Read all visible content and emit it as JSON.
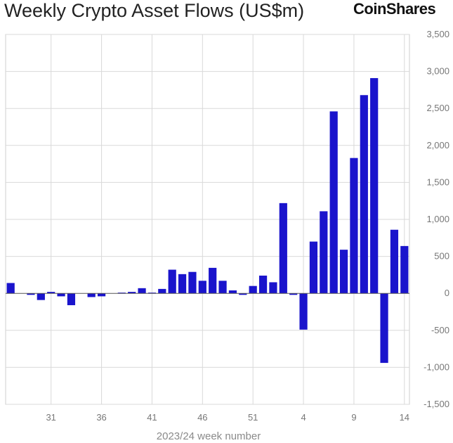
{
  "title": "Weekly Crypto Asset Flows (US$m)",
  "brand": "CoinShares",
  "chart_data": {
    "type": "bar",
    "title": "Weekly Crypto Asset Flows (US$m)",
    "xlabel": "2023/24 week number",
    "ylabel": "",
    "ylim": [
      -1500,
      3500
    ],
    "yticks": [
      3500,
      3000,
      2500,
      2000,
      1500,
      1000,
      500,
      0,
      -500,
      -1000,
      -1500
    ],
    "ytick_labels": [
      "3,500",
      "3,000",
      "2,500",
      "2,000",
      "1,500",
      "1,000",
      "500",
      "0",
      "-500",
      "-1,000",
      "-1,500"
    ],
    "xtick_labels": [
      "31",
      "36",
      "41",
      "46",
      "51",
      "4",
      "9",
      "14"
    ],
    "bar_color": "#1a14cc",
    "grid": true,
    "categories": [
      "27",
      "28",
      "29",
      "30",
      "31",
      "32",
      "33",
      "34",
      "35",
      "36",
      "37",
      "38",
      "39",
      "40",
      "41",
      "42",
      "43",
      "44",
      "45",
      "46",
      "47",
      "48",
      "49",
      "50",
      "51",
      "52",
      "1",
      "2",
      "3",
      "4",
      "5",
      "6",
      "7",
      "8",
      "9",
      "10",
      "11",
      "12",
      "13",
      "14"
    ],
    "values": [
      140,
      0,
      -20,
      -90,
      20,
      -40,
      -160,
      0,
      -50,
      -40,
      0,
      10,
      20,
      70,
      10,
      60,
      320,
      260,
      290,
      170,
      345,
      170,
      40,
      -20,
      100,
      240,
      150,
      1220,
      -20,
      -490,
      700,
      1110,
      2460,
      590,
      1830,
      2680,
      2910,
      -940,
      860,
      640
    ]
  }
}
